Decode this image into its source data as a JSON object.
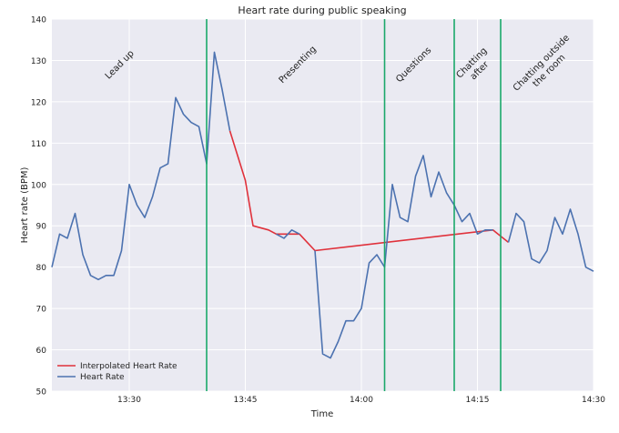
{
  "chart_data": {
    "type": "line",
    "title": "Heart rate during public speaking",
    "xlabel": "Time",
    "ylabel": "Heart rate (BPM)",
    "xlim": [
      "13:20",
      "14:30"
    ],
    "ylim": [
      50,
      140
    ],
    "yticks": [
      50,
      60,
      70,
      80,
      90,
      100,
      110,
      120,
      130,
      140
    ],
    "xticks": [
      "13:30",
      "13:45",
      "14:00",
      "14:15",
      "14:30"
    ],
    "grid": true,
    "legend_position": "bottom-left",
    "colors": {
      "heart_rate": "#4c72b0",
      "interpolated": "#e0313b",
      "phase_lines": "#1aa86a",
      "background": "#eaeaf2",
      "grid": "#ffffff"
    },
    "series": [
      {
        "name": "Heart Rate",
        "x": [
          "13:20",
          "13:21",
          "13:22",
          "13:23",
          "13:24",
          "13:25",
          "13:26",
          "13:27",
          "13:28",
          "13:29",
          "13:30",
          "13:31",
          "13:32",
          "13:33",
          "13:34",
          "13:35",
          "13:36",
          "13:37",
          "13:38",
          "13:39",
          "13:40",
          "13:41",
          "13:42",
          "13:43",
          "13:44",
          "13:45",
          "13:46",
          "13:47",
          "13:48",
          "13:49",
          "13:50",
          "13:51",
          "13:52",
          "13:53",
          "13:54",
          "13:55",
          "13:56",
          "13:57",
          "13:58",
          "13:59",
          "14:00",
          "14:01",
          "14:02",
          "14:03",
          "14:04",
          "14:05",
          "14:06",
          "14:07",
          "14:08",
          "14:09",
          "14:10",
          "14:11",
          "14:12",
          "14:13",
          "14:14",
          "14:15",
          "14:16",
          "14:17",
          "14:18",
          "14:19",
          "14:20",
          "14:21",
          "14:22",
          "14:23",
          "14:24",
          "14:25",
          "14:26",
          "14:27",
          "14:28",
          "14:29",
          "14:30"
        ],
        "y": [
          80,
          88,
          87,
          93,
          83,
          78,
          77,
          78,
          78,
          84,
          100,
          95,
          92,
          97,
          104,
          105,
          121,
          117,
          115,
          114,
          105,
          132,
          123,
          113,
          null,
          null,
          90,
          null,
          null,
          88,
          87,
          89,
          88,
          null,
          84,
          59,
          58,
          62,
          67,
          67,
          70,
          81,
          83,
          80,
          100,
          92,
          91,
          102,
          107,
          97,
          103,
          98,
          95,
          91,
          93,
          88,
          89,
          89,
          null,
          86,
          93,
          91,
          82,
          81,
          84,
          92,
          88,
          94,
          88,
          80,
          79
        ]
      },
      {
        "name": "Interpolated Heart Rate",
        "x": [
          "13:43",
          "13:44",
          "13:45",
          "13:46",
          "13:48",
          "13:49",
          "13:52",
          "13:53",
          "13:54",
          "14:17",
          "14:18",
          "14:19"
        ],
        "y": [
          113,
          107,
          101,
          90,
          89,
          88,
          88,
          86,
          84,
          89,
          87.5,
          86
        ]
      }
    ],
    "phase_boundaries": [
      "13:40",
      "14:03",
      "14:12",
      "14:18"
    ],
    "annotations": [
      {
        "text": [
          "Lead up"
        ],
        "x": "13:29"
      },
      {
        "text": [
          "Presenting"
        ],
        "x": "13:52"
      },
      {
        "text": [
          "Questions"
        ],
        "x": "14:07"
      },
      {
        "text": [
          "Chatting",
          "after"
        ],
        "x": "14:15"
      },
      {
        "text": [
          "Chatting outside",
          "the room"
        ],
        "x": "14:24"
      }
    ]
  }
}
